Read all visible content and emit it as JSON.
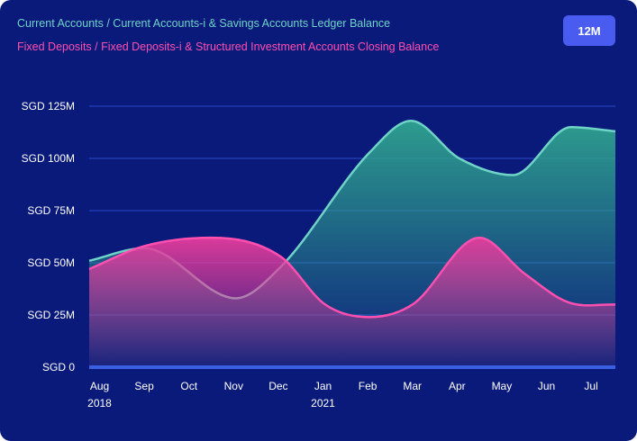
{
  "colors": {
    "background": "#0a1a7a",
    "gridline": "#2a48c8",
    "baseline": "#3a5fe0",
    "button": "#4a5cf0",
    "casa_line": "#6fd3c7",
    "casa_fill": "#2fa38f",
    "fd_line": "#ff4fb0",
    "fd_fill": "#e43c9c"
  },
  "period_button": {
    "label": "12M"
  },
  "chart_data": {
    "type": "area",
    "currency": "SGD",
    "ylim": [
      0,
      125
    ],
    "yticks": [
      0,
      25,
      50,
      75,
      100,
      125
    ],
    "ytick_labels": [
      "SGD 0",
      "SGD 25M",
      "SGD 50M",
      "SGD 75M",
      "SGD 100M",
      "SGD 125M"
    ],
    "categories": [
      "Aug 2018",
      "Sep",
      "Oct",
      "Nov",
      "Dec",
      "Jan 2021",
      "Feb",
      "Mar",
      "Apr",
      "May",
      "Jun",
      "Jul"
    ],
    "x_labels": [
      {
        "line1": "Aug",
        "line2": "2018"
      },
      {
        "line1": "Sep",
        "line2": ""
      },
      {
        "line1": "Oct",
        "line2": ""
      },
      {
        "line1": "Nov",
        "line2": ""
      },
      {
        "line1": "Dec",
        "line2": ""
      },
      {
        "line1": "Jan",
        "line2": "2021"
      },
      {
        "line1": "Feb",
        "line2": ""
      },
      {
        "line1": "Mar",
        "line2": ""
      },
      {
        "line1": "Apr",
        "line2": ""
      },
      {
        "line1": "May",
        "line2": ""
      },
      {
        "line1": "Jun",
        "line2": ""
      },
      {
        "line1": "Jul",
        "line2": ""
      }
    ],
    "series": [
      {
        "name": "Current Accounts / Current Accounts-i & Savings Accounts Ledger Balance",
        "color": "#6fd3c7",
        "points": [
          {
            "x": 0,
            "y": 51
          },
          {
            "x": 1,
            "y": 57
          },
          {
            "x": 3.05,
            "y": 33
          },
          {
            "x": 4.05,
            "y": 48
          },
          {
            "x": 6.05,
            "y": 103
          },
          {
            "x": 6.97,
            "y": 118
          },
          {
            "x": 8.05,
            "y": 100
          },
          {
            "x": 9.25,
            "y": 92
          },
          {
            "x": 10.55,
            "y": 115
          },
          {
            "x": 11.55,
            "y": 113
          }
        ]
      },
      {
        "name": "Fixed Deposits / Fixed Deposits-i & Structured Investment Accounts Closing Balance",
        "color": "#ff4fb0",
        "points": [
          {
            "x": 0,
            "y": 47
          },
          {
            "x": 1,
            "y": 58
          },
          {
            "x": 2.5,
            "y": 62
          },
          {
            "x": 4.05,
            "y": 53
          },
          {
            "x": 5.05,
            "y": 30
          },
          {
            "x": 6.05,
            "y": 24
          },
          {
            "x": 7.0,
            "y": 30
          },
          {
            "x": 8.5,
            "y": 62
          },
          {
            "x": 9.5,
            "y": 45
          },
          {
            "x": 10.5,
            "y": 31
          },
          {
            "x": 11.55,
            "y": 30
          }
        ]
      }
    ],
    "grid": true,
    "legend_position": "top-left"
  }
}
